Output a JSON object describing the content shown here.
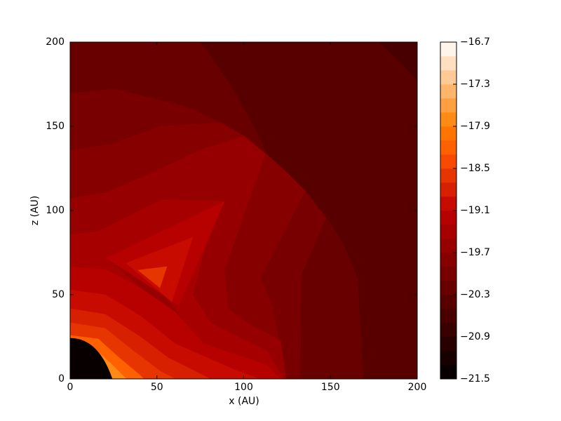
{
  "chart_data": {
    "type": "contourf",
    "xlabel": "x (AU)",
    "ylabel": "z (AU)",
    "xlim": [
      0,
      200
    ],
    "ylim": [
      0,
      200
    ],
    "xticks": [
      0,
      50,
      100,
      150,
      200
    ],
    "yticks": [
      0,
      50,
      100,
      150,
      200
    ],
    "colormap": "gist_heat",
    "clim": [
      -21.5,
      -16.7
    ],
    "levels": [
      -21.5,
      -21.3,
      -21.1,
      -20.9,
      -20.7,
      -20.5,
      -20.3,
      -20.1,
      -19.9,
      -19.7,
      -19.5,
      -19.3,
      -19.1,
      -18.9,
      -18.7,
      -18.5,
      -18.3,
      -18.1,
      -17.9,
      -17.7,
      -17.5,
      -17.3,
      -17.1,
      -16.9,
      -16.7
    ],
    "cticks": [
      {
        "value": -21.5,
        "label": "−21.5"
      },
      {
        "value": -20.9,
        "label": "−20.9"
      },
      {
        "value": -20.3,
        "label": "−20.3"
      },
      {
        "value": -19.7,
        "label": "−19.7"
      },
      {
        "value": -19.1,
        "label": "−19.1"
      },
      {
        "value": -18.5,
        "label": "−18.5"
      },
      {
        "value": -17.9,
        "label": "−17.9"
      },
      {
        "value": -17.3,
        "label": "−17.3"
      },
      {
        "value": -16.7,
        "label": "−16.7"
      }
    ]
  }
}
